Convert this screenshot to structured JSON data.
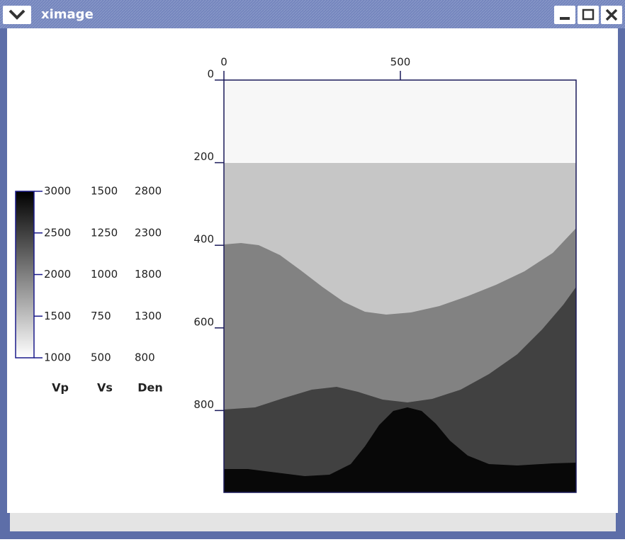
{
  "window": {
    "title": "ximage"
  },
  "plot": {
    "xticks": [
      0,
      500
    ],
    "yticks": [
      0,
      200,
      400,
      600,
      800
    ]
  },
  "colorbar": {
    "columns": [
      {
        "name": "Vp",
        "ticks": [
          3000,
          2500,
          2000,
          1500,
          1000
        ]
      },
      {
        "name": "Vs",
        "ticks": [
          1500,
          1250,
          1000,
          750,
          500
        ]
      },
      {
        "name": "Den",
        "ticks": [
          2800,
          2300,
          1800,
          1300,
          800
        ]
      }
    ]
  }
}
